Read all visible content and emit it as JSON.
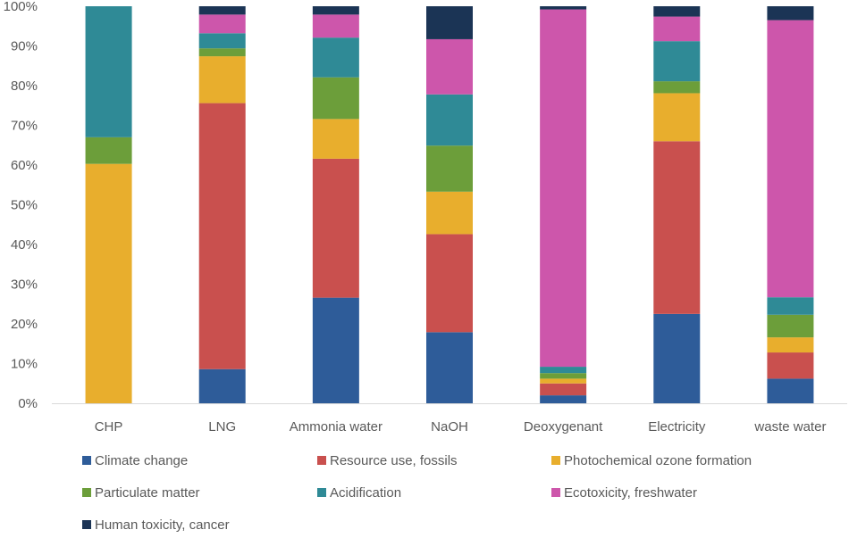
{
  "chart_data": {
    "type": "bar",
    "stacked": true,
    "percent_stacked": true,
    "title": "",
    "xlabel": "",
    "ylabel": "",
    "ylim": [
      0,
      100
    ],
    "y_ticks": [
      0,
      10,
      20,
      30,
      40,
      50,
      60,
      70,
      80,
      90,
      100
    ],
    "y_tick_labels": [
      "0%",
      "10%",
      "20%",
      "30%",
      "40%",
      "50%",
      "60%",
      "70%",
      "80%",
      "90%",
      "100%"
    ],
    "grid": false,
    "legend_position": "bottom",
    "categories": [
      "CHP",
      "LNG",
      "Ammonia water",
      "NaOH",
      "Deoxygenant",
      "Electricity",
      "waste water"
    ],
    "series": [
      {
        "name": "Climate change",
        "color": "#2e5c99",
        "values": [
          0,
          8.6,
          26.6,
          17.9,
          2.0,
          22.5,
          6.2
        ]
      },
      {
        "name": "Resource use, fossils",
        "color": "#c9504e",
        "values": [
          0,
          67.0,
          35.0,
          24.7,
          3.0,
          43.5,
          6.6
        ]
      },
      {
        "name": "Photochemical ozone formation",
        "color": "#e8ae2d",
        "values": [
          60.3,
          11.8,
          10.0,
          10.7,
          1.2,
          12.1,
          3.8
        ]
      },
      {
        "name": "Particulate matter",
        "color": "#6c9e3a",
        "values": [
          6.7,
          2.0,
          10.5,
          11.6,
          1.4,
          3.0,
          5.7
        ]
      },
      {
        "name": "Acidification",
        "color": "#2f8a96",
        "values": [
          33.0,
          3.8,
          10.0,
          12.9,
          1.6,
          10.1,
          4.4
        ]
      },
      {
        "name": "Ecotoxicity, freshwater",
        "color": "#cd56ab",
        "values": [
          0,
          4.7,
          5.8,
          13.9,
          90.0,
          6.2,
          69.8
        ]
      },
      {
        "name": "Human toxicity, cancer",
        "color": "#1b3455",
        "values": [
          0,
          2.1,
          2.1,
          8.3,
          0.8,
          2.6,
          3.5
        ]
      }
    ]
  }
}
